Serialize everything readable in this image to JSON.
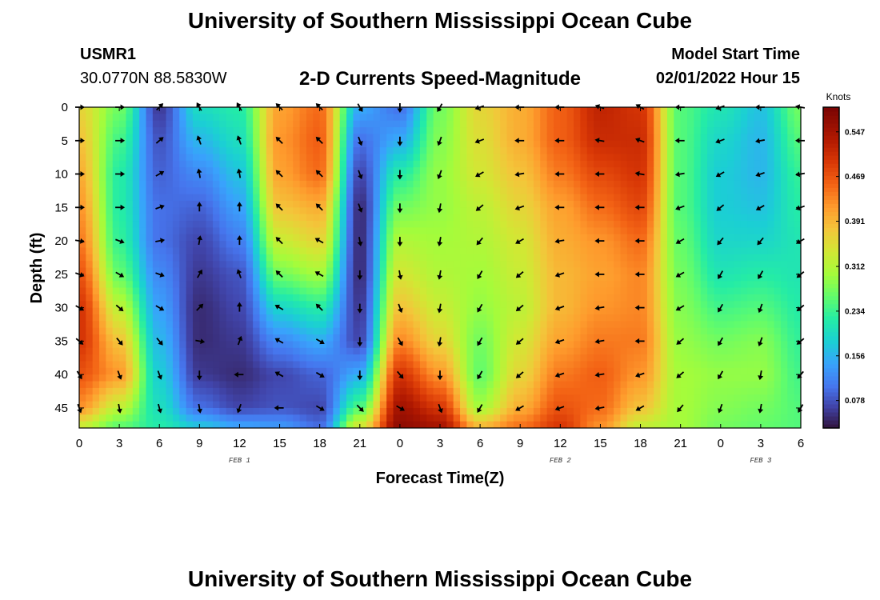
{
  "header": {
    "title": "University of Southern Mississippi Ocean Cube",
    "station": "USMR1",
    "coords": "30.0770N  88.5830W",
    "plot_title": "2-D Currents Speed-Magnitude",
    "start_label": "Model Start Time",
    "start_value": "02/01/2022 Hour 15"
  },
  "footer": {
    "title": "University of Southern Mississippi Ocean Cube"
  },
  "chart_data": {
    "type": "heatmap",
    "title": "2-D Currents Speed-Magnitude",
    "xlabel": "Forecast Time(Z)",
    "ylabel": "Depth (ft)",
    "xlim": [
      0,
      54
    ],
    "ylim": [
      48,
      0
    ],
    "x_ticks": [
      0,
      3,
      6,
      9,
      12,
      15,
      18,
      21,
      24,
      27,
      30,
      33,
      36,
      39,
      42,
      45,
      48,
      51,
      54
    ],
    "x_tick_labels": [
      "0",
      "3",
      "6",
      "9",
      "12",
      "15",
      "18",
      "21",
      "0",
      "3",
      "6",
      "9",
      "12",
      "15",
      "18",
      "21",
      "0",
      "3",
      "6"
    ],
    "y_ticks": [
      0,
      5,
      10,
      15,
      20,
      25,
      30,
      35,
      40,
      45
    ],
    "date_labels": [
      {
        "text": "FEB 1",
        "x": 12
      },
      {
        "text": "FEB 2",
        "x": 36
      },
      {
        "text": "FEB 3",
        "x": 51
      }
    ],
    "colorbar": {
      "title": "Knots",
      "ticks": [
        0.078,
        0.156,
        0.234,
        0.312,
        0.391,
        0.469,
        0.547
      ],
      "tick_labels": [
        "0.078",
        "0.156",
        "0.234",
        "0.312",
        "0.391",
        "0.469",
        "0.547"
      ],
      "range": [
        0.03,
        0.59
      ]
    },
    "speed_columns": {
      "times": [
        0,
        3,
        6,
        9,
        12,
        15,
        18,
        21,
        24,
        27,
        30,
        33,
        36,
        39,
        42,
        45,
        48,
        51,
        54
      ],
      "depths": [
        0,
        5,
        10,
        15,
        20,
        25,
        30,
        35,
        40,
        45,
        48
      ],
      "values": [
        [
          0.36,
          0.38,
          0.4,
          0.42,
          0.44,
          0.47,
          0.5,
          0.5,
          0.47,
          0.42,
          0.32
        ],
        [
          0.27,
          0.24,
          0.22,
          0.22,
          0.23,
          0.26,
          0.32,
          0.38,
          0.42,
          0.32,
          0.25
        ],
        [
          0.06,
          0.08,
          0.09,
          0.1,
          0.1,
          0.12,
          0.14,
          0.16,
          0.18,
          0.2,
          0.22
        ],
        [
          0.2,
          0.16,
          0.12,
          0.09,
          0.07,
          0.06,
          0.05,
          0.05,
          0.06,
          0.1,
          0.18
        ],
        [
          0.22,
          0.2,
          0.17,
          0.14,
          0.11,
          0.08,
          0.07,
          0.06,
          0.05,
          0.07,
          0.15
        ],
        [
          0.41,
          0.42,
          0.41,
          0.38,
          0.33,
          0.27,
          0.19,
          0.12,
          0.07,
          0.08,
          0.14
        ],
        [
          0.45,
          0.46,
          0.45,
          0.4,
          0.36,
          0.3,
          0.22,
          0.15,
          0.09,
          0.07,
          0.1
        ],
        [
          0.15,
          0.1,
          0.07,
          0.05,
          0.05,
          0.05,
          0.06,
          0.07,
          0.15,
          0.25,
          0.35
        ],
        [
          0.1,
          0.15,
          0.22,
          0.27,
          0.31,
          0.34,
          0.38,
          0.43,
          0.5,
          0.55,
          0.57
        ],
        [
          0.27,
          0.28,
          0.29,
          0.29,
          0.3,
          0.31,
          0.33,
          0.36,
          0.42,
          0.5,
          0.55
        ],
        [
          0.36,
          0.35,
          0.34,
          0.32,
          0.31,
          0.3,
          0.29,
          0.27,
          0.26,
          0.3,
          0.4
        ],
        [
          0.4,
          0.4,
          0.38,
          0.36,
          0.34,
          0.33,
          0.32,
          0.34,
          0.36,
          0.4,
          0.45
        ],
        [
          0.46,
          0.46,
          0.44,
          0.41,
          0.4,
          0.39,
          0.39,
          0.41,
          0.44,
          0.47,
          0.5
        ],
        [
          0.52,
          0.51,
          0.48,
          0.45,
          0.42,
          0.41,
          0.42,
          0.44,
          0.46,
          0.45,
          0.42
        ],
        [
          0.5,
          0.51,
          0.5,
          0.48,
          0.45,
          0.43,
          0.43,
          0.44,
          0.42,
          0.38,
          0.32
        ],
        [
          0.25,
          0.25,
          0.25,
          0.25,
          0.26,
          0.27,
          0.28,
          0.29,
          0.3,
          0.3,
          0.3
        ],
        [
          0.21,
          0.19,
          0.18,
          0.18,
          0.19,
          0.21,
          0.24,
          0.27,
          0.29,
          0.28,
          0.27
        ],
        [
          0.17,
          0.16,
          0.16,
          0.17,
          0.19,
          0.22,
          0.25,
          0.28,
          0.29,
          0.27,
          0.26
        ],
        [
          0.27,
          0.25,
          0.23,
          0.22,
          0.21,
          0.21,
          0.22,
          0.23,
          0.24,
          0.25,
          0.25
        ]
      ]
    },
    "vectors": {
      "times": [
        0,
        3,
        6,
        9,
        12,
        15,
        18,
        21,
        24,
        27,
        30,
        33,
        36,
        39,
        42,
        45,
        48,
        51,
        54
      ],
      "depths": [
        0,
        5,
        10,
        15,
        20,
        25,
        30,
        35,
        40,
        45
      ],
      "directions_deg": [
        [
          90,
          90,
          90,
          90,
          100,
          110,
          120,
          130,
          150,
          160
        ],
        [
          90,
          90,
          90,
          90,
          110,
          120,
          130,
          140,
          160,
          170
        ],
        [
          45,
          50,
          60,
          70,
          80,
          110,
          120,
          140,
          160,
          165
        ],
        [
          330,
          340,
          350,
          0,
          10,
          30,
          45,
          100,
          180,
          170
        ],
        [
          330,
          340,
          350,
          0,
          0,
          340,
          0,
          20,
          270,
          200
        ],
        [
          315,
          315,
          315,
          315,
          315,
          315,
          300,
          300,
          300,
          270
        ],
        [
          315,
          315,
          315,
          315,
          300,
          300,
          315,
          120,
          120,
          120
        ],
        [
          150,
          160,
          160,
          160,
          170,
          180,
          180,
          180,
          180,
          135
        ],
        [
          180,
          180,
          180,
          180,
          180,
          170,
          160,
          150,
          140,
          120
        ],
        [
          210,
          200,
          200,
          190,
          190,
          190,
          190,
          190,
          180,
          160
        ],
        [
          250,
          250,
          240,
          230,
          220,
          210,
          210,
          210,
          210,
          210
        ],
        [
          270,
          270,
          260,
          250,
          240,
          230,
          230,
          230,
          230,
          240
        ],
        [
          270,
          270,
          270,
          270,
          260,
          250,
          250,
          250,
          250,
          250
        ],
        [
          290,
          280,
          270,
          270,
          270,
          270,
          260,
          260,
          260,
          260
        ],
        [
          300,
          290,
          280,
          270,
          270,
          270,
          270,
          270,
          250,
          240
        ],
        [
          270,
          270,
          260,
          250,
          240,
          240,
          240,
          230,
          230,
          220
        ],
        [
          250,
          250,
          240,
          230,
          220,
          210,
          210,
          210,
          210,
          200
        ],
        [
          270,
          260,
          250,
          240,
          220,
          210,
          200,
          200,
          190,
          190
        ],
        [
          280,
          270,
          260,
          250,
          240,
          230,
          230,
          230,
          220,
          210
        ]
      ]
    }
  }
}
